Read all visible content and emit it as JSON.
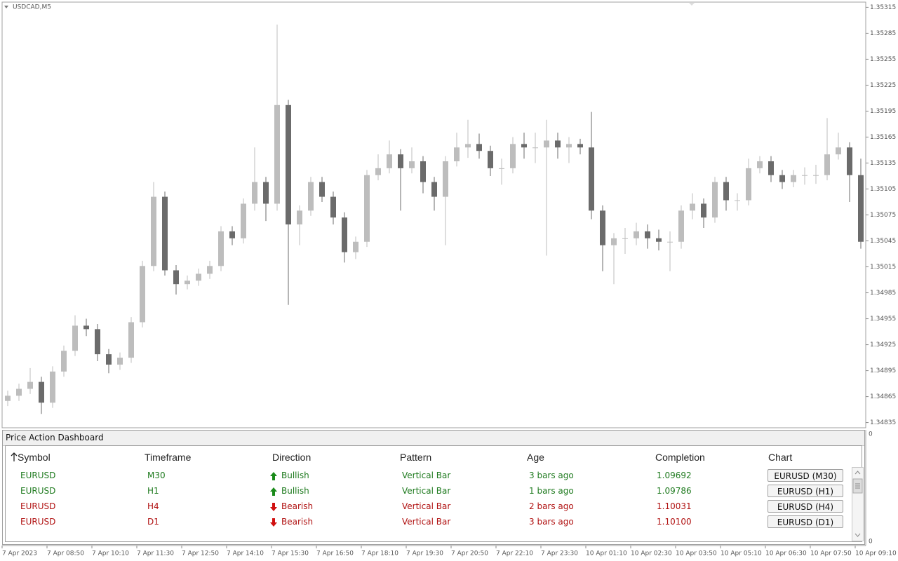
{
  "chart_data": {
    "type": "candlestick",
    "title": "USDCAD,M5",
    "categories": [
      "7 Apr 2023",
      null,
      null,
      null,
      "7 Apr 08:50",
      null,
      null,
      null,
      "7 Apr 10:10",
      null,
      null,
      null,
      "7 Apr 11:30",
      null,
      null,
      null,
      "7 Apr 12:50",
      null,
      null,
      null,
      "7 Apr 14:10",
      null,
      null,
      null,
      "7 Apr 15:30",
      null,
      null,
      null,
      "7 Apr 16:50",
      null,
      null,
      null,
      "7 Apr 18:10",
      null,
      null,
      null,
      "7 Apr 19:30",
      null,
      null,
      null,
      "7 Apr 20:50",
      null,
      null,
      null,
      "7 Apr 22:10",
      null,
      null,
      null,
      "7 Apr 23:30",
      null,
      null,
      null,
      "10 Apr 01:10",
      null,
      null,
      null,
      "10 Apr 02:30",
      null,
      null,
      null,
      "10 Apr 03:50",
      null,
      null,
      null,
      "10 Apr 05:10",
      null,
      null,
      null,
      "10 Apr 06:30",
      null,
      null,
      null,
      "10 Apr 07:50",
      null,
      null,
      null,
      "10 Apr 09:10"
    ],
    "open": [
      1.3486,
      1.34866,
      1.34874,
      1.34882,
      1.34858,
      1.34894,
      1.34918,
      1.34947,
      1.34943,
      1.34914,
      1.34902,
      1.3491,
      1.34951,
      1.35016,
      1.35096,
      1.35011,
      1.34995,
      1.34999,
      1.35007,
      1.35016,
      1.35056,
      1.35048,
      1.35088,
      1.35113,
      1.35088,
      1.35202,
      1.35064,
      1.3508,
      1.35113,
      1.35096,
      1.35072,
      1.35032,
      1.35044,
      1.35121,
      1.35129,
      1.35145,
      1.35129,
      1.35137,
      1.35113,
      1.35096,
      1.35137,
      1.35153,
      1.35157,
      1.35149,
      1.35129,
      1.35129,
      1.35157,
      1.35153,
      1.35153,
      1.35161,
      1.35153,
      1.35157,
      1.35153,
      1.3508,
      1.3504,
      1.35048,
      1.35048,
      1.35056,
      1.35048,
      1.35044,
      1.35044,
      1.3508,
      1.35088,
      1.35072,
      1.35113,
      1.35092,
      1.35092,
      1.35129,
      1.35137,
      1.35121,
      1.35113,
      1.35121,
      1.35121,
      1.35121,
      1.35145,
      1.35153,
      1.35121
    ],
    "high": [
      1.34872,
      1.3488,
      1.34898,
      1.34888,
      1.349,
      1.34924,
      1.34959,
      1.34955,
      1.34949,
      1.3492,
      1.34916,
      1.34957,
      1.35022,
      1.35113,
      1.35102,
      1.35017,
      1.35005,
      1.35013,
      1.35022,
      1.35062,
      1.35062,
      1.35094,
      1.35153,
      1.35119,
      1.35295,
      1.35208,
      1.35086,
      1.35119,
      1.35119,
      1.35102,
      1.35078,
      1.3505,
      1.35127,
      1.35145,
      1.35161,
      1.35151,
      1.35153,
      1.35143,
      1.35119,
      1.35143,
      1.3517,
      1.35185,
      1.35169,
      1.35155,
      1.3514,
      1.35165,
      1.3517,
      1.3517,
      1.35185,
      1.3517,
      1.35165,
      1.35163,
      1.35194,
      1.35086,
      1.35054,
      1.3506,
      1.35066,
      1.35064,
      1.35058,
      1.35056,
      1.35086,
      1.351,
      1.35094,
      1.35119,
      1.35119,
      1.351,
      1.3514,
      1.35143,
      1.35143,
      1.35127,
      1.35127,
      1.3513,
      1.35133,
      1.35187,
      1.3517,
      1.35159,
      1.3514
    ],
    "low": [
      1.34854,
      1.3486,
      1.34868,
      1.34845,
      1.34852,
      1.34888,
      1.34912,
      1.34935,
      1.34906,
      1.34892,
      1.34896,
      1.34904,
      1.34945,
      1.3501,
      1.35005,
      1.34983,
      1.34989,
      1.34993,
      1.35001,
      1.3501,
      1.3504,
      1.35042,
      1.3508,
      1.35068,
      1.3508,
      1.34971,
      1.3504,
      1.35074,
      1.3509,
      1.35064,
      1.3502,
      1.35024,
      1.35038,
      1.35115,
      1.35123,
      1.3508,
      1.35123,
      1.351,
      1.3508,
      1.3504,
      1.35131,
      1.35141,
      1.3514,
      1.3512,
      1.3511,
      1.35123,
      1.3514,
      1.35135,
      1.35028,
      1.3514,
      1.35135,
      1.35145,
      1.3507,
      1.3501,
      1.34995,
      1.3503,
      1.3504,
      1.35036,
      1.35034,
      1.3501,
      1.35036,
      1.3507,
      1.3506,
      1.35066,
      1.3508,
      1.3508,
      1.35086,
      1.35123,
      1.35113,
      1.35105,
      1.35107,
      1.3511,
      1.35111,
      1.35115,
      1.35139,
      1.3509,
      1.35036
    ],
    "close": [
      1.34866,
      1.34874,
      1.34882,
      1.34858,
      1.34894,
      1.34918,
      1.34947,
      1.34943,
      1.34914,
      1.34902,
      1.3491,
      1.34951,
      1.35016,
      1.35096,
      1.35011,
      1.34995,
      1.34999,
      1.35007,
      1.35016,
      1.35056,
      1.35048,
      1.35088,
      1.35113,
      1.35088,
      1.35202,
      1.35064,
      1.3508,
      1.35113,
      1.35096,
      1.35072,
      1.35032,
      1.35044,
      1.35121,
      1.35129,
      1.35145,
      1.35129,
      1.35137,
      1.35113,
      1.35096,
      1.35137,
      1.35153,
      1.35157,
      1.35149,
      1.35129,
      1.35129,
      1.35157,
      1.35153,
      1.35153,
      1.35161,
      1.35153,
      1.35157,
      1.35153,
      1.3508,
      1.3504,
      1.35048,
      1.35048,
      1.35056,
      1.35048,
      1.35044,
      1.35044,
      1.3508,
      1.35088,
      1.35072,
      1.35113,
      1.35092,
      1.35092,
      1.35129,
      1.35137,
      1.35121,
      1.35113,
      1.35121,
      1.35121,
      1.35121,
      1.35145,
      1.35153,
      1.35121,
      1.35044
    ],
    "up_color": "#bdbdbd",
    "down_color": "#6b6b6b",
    "ylim": [
      1.34829,
      1.35321
    ],
    "yticks": [
      1.35315,
      1.35285,
      1.35255,
      1.35225,
      1.35195,
      1.35165,
      1.35135,
      1.35105,
      1.35075,
      1.35045,
      1.35015,
      1.34985,
      1.34955,
      1.34925,
      1.34895,
      1.34865,
      1.34835
    ]
  },
  "indicator_axis": [
    0,
    0
  ],
  "dashboard": {
    "title": "Price Action Dashboard",
    "columns": [
      "Symbol",
      "Timeframe",
      "Direction",
      "Pattern",
      "Age",
      "Completion",
      "Chart"
    ],
    "rows": [
      [
        "EURUSD",
        "M30",
        "Bullish",
        "Vertical Bar",
        "3 bars ago",
        "1.09692",
        "EURUSD (M30)"
      ],
      [
        "EURUSD",
        "H1",
        "Bullish",
        "Vertical Bar",
        "1 bars ago",
        "1.09786",
        "EURUSD (H1)"
      ],
      [
        "EURUSD",
        "H4",
        "Bearish",
        "Vertical Bar",
        "2 bars ago",
        "1.10031",
        "EURUSD (H4)"
      ],
      [
        "EURUSD",
        "D1",
        "Bearish",
        "Vertical Bar",
        "3 bars ago",
        "1.10100",
        "EURUSD (D1)"
      ]
    ]
  }
}
